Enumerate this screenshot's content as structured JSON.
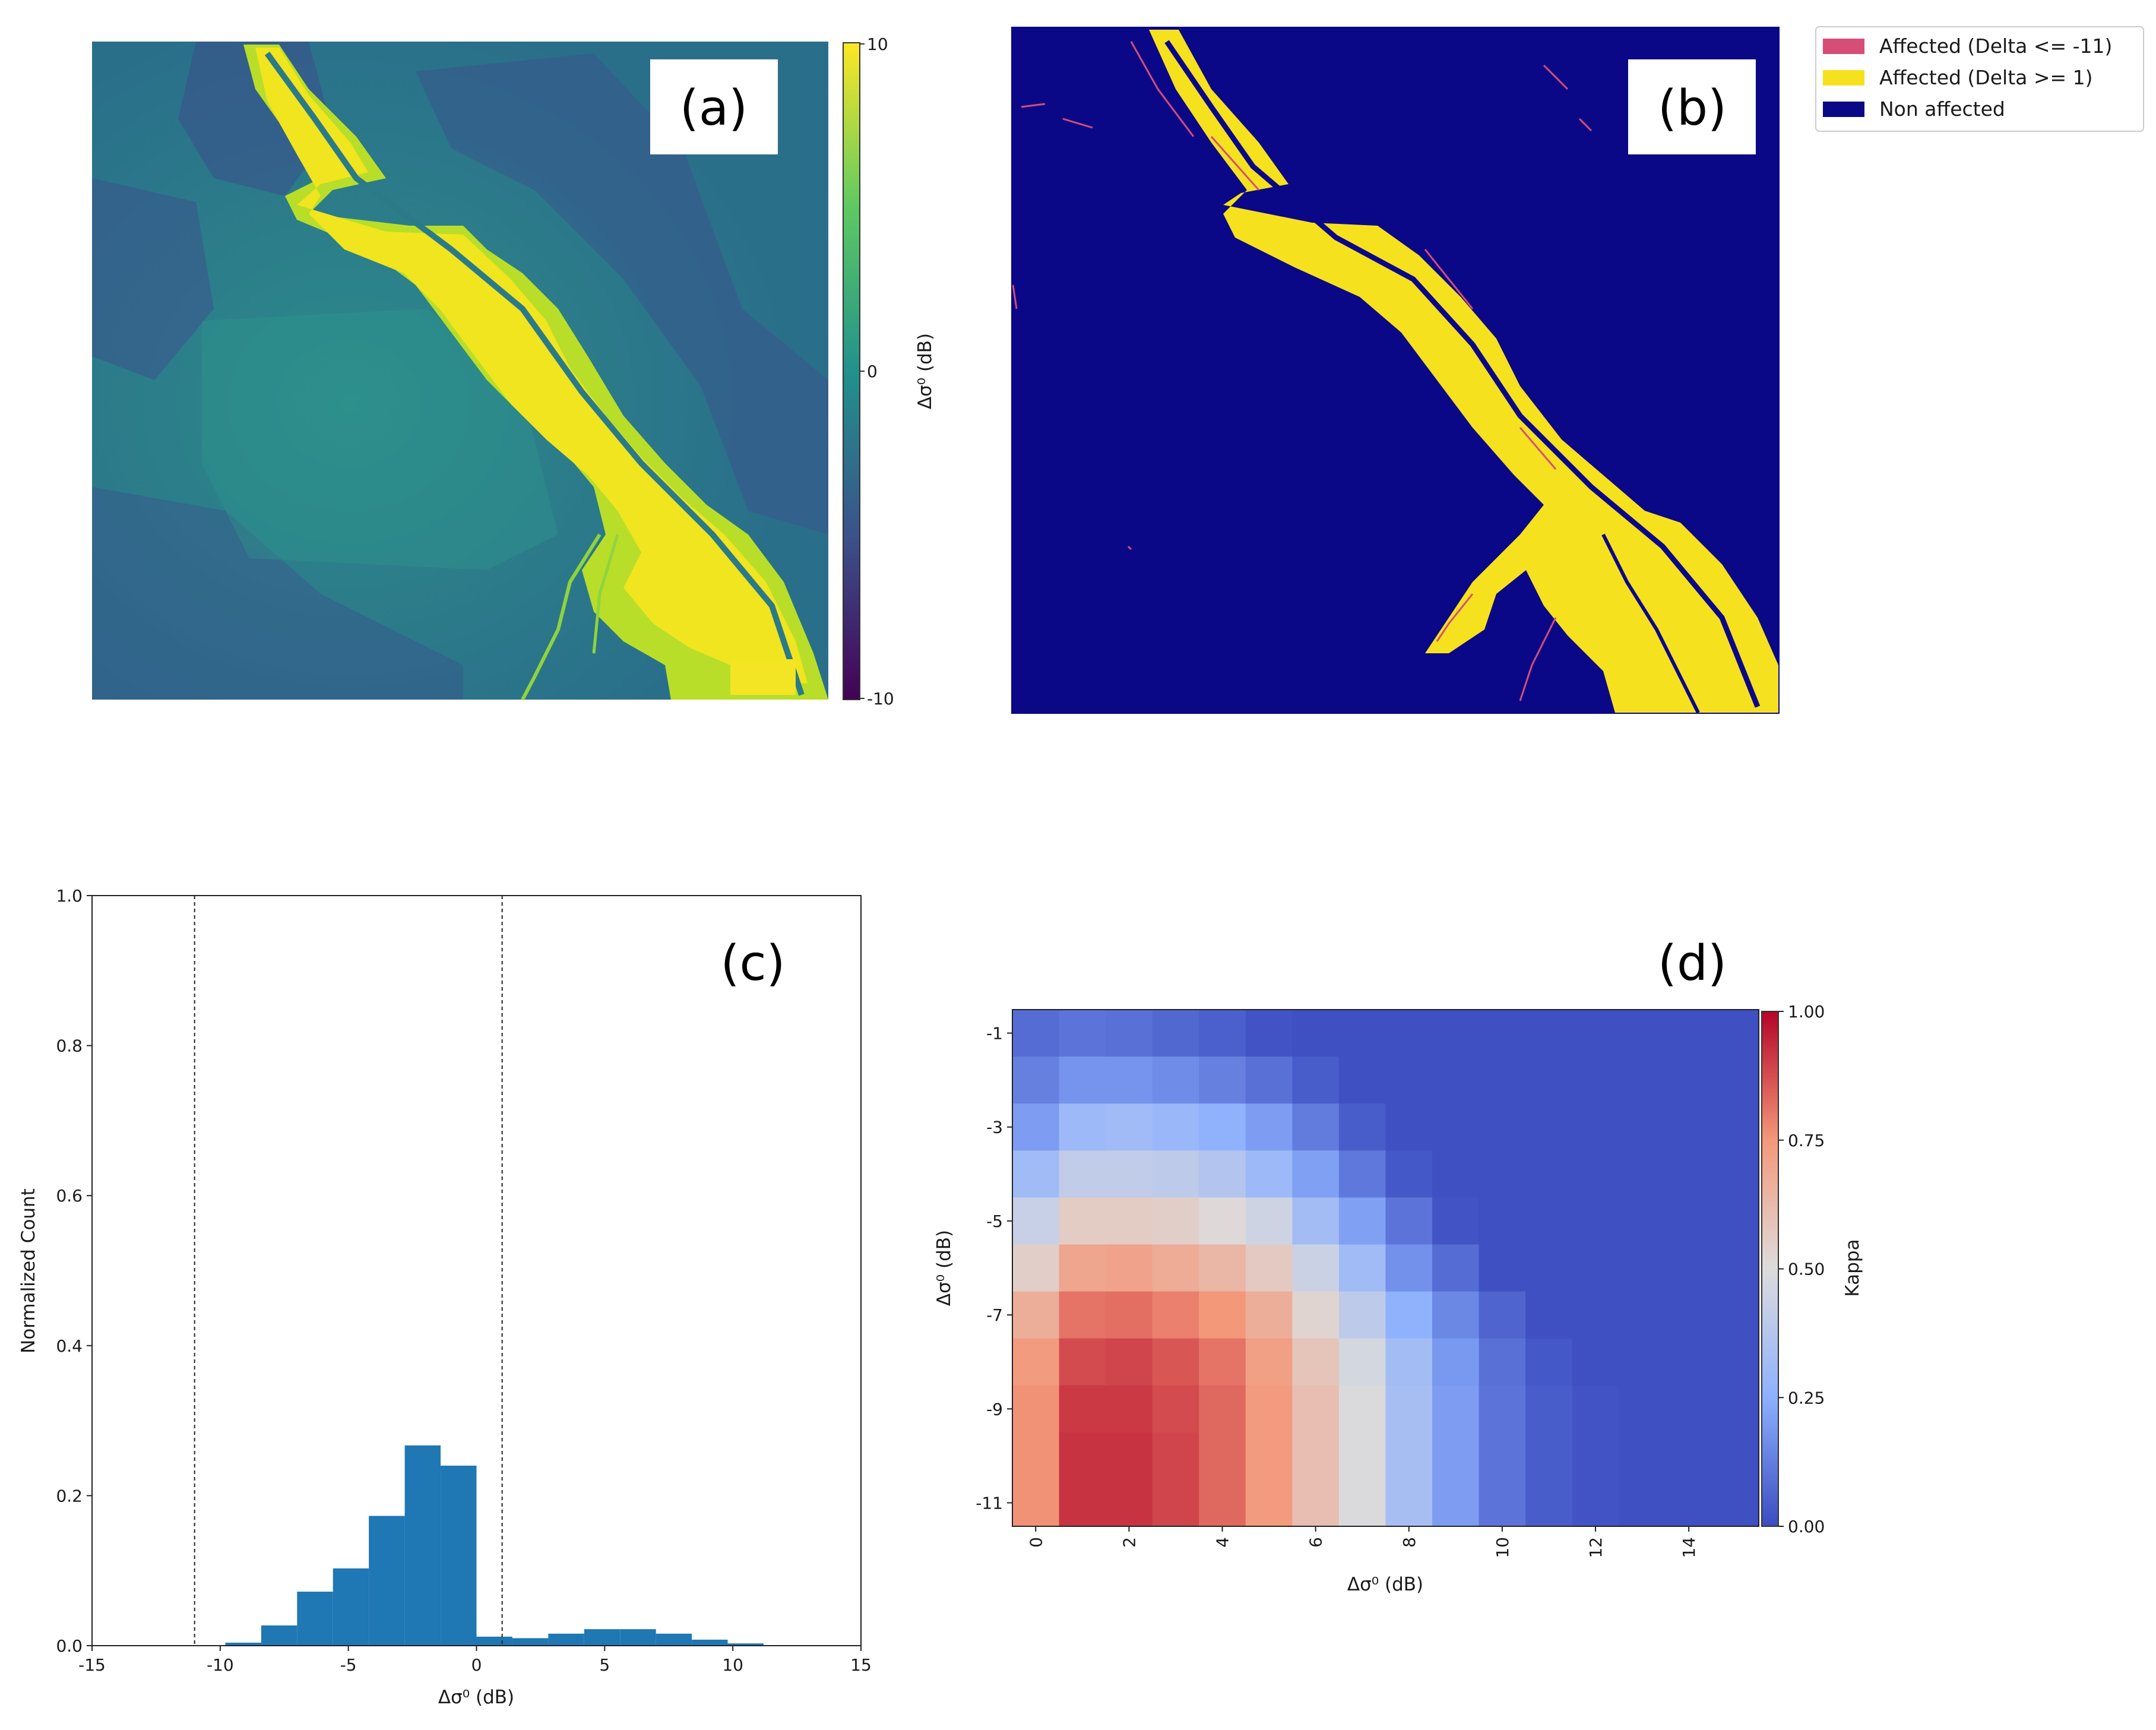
{
  "chart_data": [
    {
      "panel": "a",
      "type": "heatmap",
      "label": "(a)",
      "colorbar": {
        "label": "Δσ⁰ (dB)",
        "ticks": [
          "10",
          "0",
          "-10"
        ],
        "range": [
          -10,
          10
        ],
        "colormap": "viridis"
      }
    },
    {
      "panel": "b",
      "type": "heatmap",
      "label": "(b)",
      "legend": [
        {
          "label": "Affected (Delta <= -11)",
          "color": "#d64d78"
        },
        {
          "label": "Affected (Delta >= 1)",
          "color": "#f6e11f"
        },
        {
          "label": "Non affected",
          "color": "#0b0887"
        }
      ]
    },
    {
      "panel": "c",
      "type": "bar",
      "label": "(c)",
      "xlabel": "Δσ⁰ (dB)",
      "ylabel": "Normalized Count",
      "xlim": [
        -15,
        15
      ],
      "ylim": [
        0,
        1.0
      ],
      "xticks": [
        "-15",
        "-10",
        "-5",
        "0",
        "5",
        "10",
        "15"
      ],
      "yticks": [
        "0.0",
        "0.2",
        "0.4",
        "0.6",
        "0.8",
        "1.0"
      ],
      "threshold_lines": [
        -11,
        1
      ],
      "bin_width": 1.4,
      "bins": [
        {
          "start": -9.8,
          "value": 0.004
        },
        {
          "start": -8.4,
          "value": 0.027
        },
        {
          "start": -7.0,
          "value": 0.072
        },
        {
          "start": -5.6,
          "value": 0.103
        },
        {
          "start": -4.2,
          "value": 0.173
        },
        {
          "start": -2.8,
          "value": 0.267
        },
        {
          "start": -1.4,
          "value": 0.24
        },
        {
          "start": 0.0,
          "value": 0.012
        },
        {
          "start": 1.4,
          "value": 0.01
        },
        {
          "start": 2.8,
          "value": 0.016
        },
        {
          "start": 4.2,
          "value": 0.022
        },
        {
          "start": 5.6,
          "value": 0.022
        },
        {
          "start": 7.0,
          "value": 0.016
        },
        {
          "start": 8.4,
          "value": 0.008
        },
        {
          "start": 9.8,
          "value": 0.003
        }
      ],
      "bar_color": "#1f77b4"
    },
    {
      "panel": "d",
      "type": "heatmap",
      "label": "(d)",
      "xlabel": "Δσ⁰ (dB)",
      "ylabel": "Δσ⁰ (dB)",
      "x_values": [
        0,
        1,
        2,
        3,
        4,
        5,
        6,
        7,
        8,
        9,
        10,
        11,
        12,
        13,
        14,
        15
      ],
      "y_values": [
        -1,
        -2,
        -3,
        -4,
        -5,
        -6,
        -7,
        -8,
        -9,
        -10,
        -11
      ],
      "xticks": [
        "0",
        "2",
        "4",
        "6",
        "8",
        "10",
        "12",
        "14"
      ],
      "yticks": [
        "-1",
        "-3",
        "-5",
        "-7",
        "-9",
        "-11"
      ],
      "colorbar": {
        "label": "Kappa",
        "ticks": [
          "1.00",
          "0.75",
          "0.50",
          "0.25",
          "0.00"
        ],
        "range": [
          0,
          1
        ],
        "colormap": "coolwarm"
      },
      "kappa": [
        [
          0.08,
          0.1,
          0.09,
          0.07,
          0.05,
          0.02,
          0.01,
          0.01,
          0.01,
          0.01,
          0.01,
          0.01,
          0.01,
          0.01,
          0.01,
          0.01
        ],
        [
          0.13,
          0.18,
          0.18,
          0.16,
          0.13,
          0.09,
          0.04,
          0.01,
          0.01,
          0.01,
          0.01,
          0.01,
          0.01,
          0.01,
          0.01,
          0.01
        ],
        [
          0.2,
          0.3,
          0.31,
          0.29,
          0.26,
          0.2,
          0.12,
          0.04,
          0.01,
          0.01,
          0.01,
          0.01,
          0.01,
          0.01,
          0.01,
          0.01
        ],
        [
          0.31,
          0.41,
          0.41,
          0.4,
          0.37,
          0.3,
          0.21,
          0.11,
          0.03,
          0.01,
          0.01,
          0.01,
          0.01,
          0.01,
          0.01,
          0.01
        ],
        [
          0.43,
          0.56,
          0.56,
          0.55,
          0.51,
          0.45,
          0.32,
          0.21,
          0.1,
          0.02,
          0.01,
          0.01,
          0.01,
          0.01,
          0.01,
          0.01
        ],
        [
          0.55,
          0.7,
          0.71,
          0.68,
          0.64,
          0.57,
          0.44,
          0.31,
          0.17,
          0.08,
          0.01,
          0.01,
          0.01,
          0.01,
          0.01,
          0.01
        ],
        [
          0.67,
          0.81,
          0.82,
          0.79,
          0.75,
          0.67,
          0.53,
          0.4,
          0.26,
          0.15,
          0.06,
          0.01,
          0.01,
          0.01,
          0.01,
          0.01
        ],
        [
          0.74,
          0.88,
          0.89,
          0.86,
          0.81,
          0.72,
          0.59,
          0.47,
          0.32,
          0.19,
          0.09,
          0.03,
          0.01,
          0.01,
          0.01,
          0.01
        ],
        [
          0.76,
          0.91,
          0.91,
          0.88,
          0.83,
          0.74,
          0.61,
          0.49,
          0.33,
          0.2,
          0.1,
          0.04,
          0.02,
          0.01,
          0.01,
          0.01
        ],
        [
          0.76,
          0.92,
          0.92,
          0.89,
          0.83,
          0.74,
          0.61,
          0.49,
          0.33,
          0.2,
          0.1,
          0.04,
          0.02,
          0.01,
          0.01,
          0.01
        ],
        [
          0.76,
          0.92,
          0.92,
          0.89,
          0.83,
          0.74,
          0.61,
          0.49,
          0.33,
          0.2,
          0.1,
          0.04,
          0.02,
          0.01,
          0.01,
          0.01
        ]
      ]
    }
  ]
}
